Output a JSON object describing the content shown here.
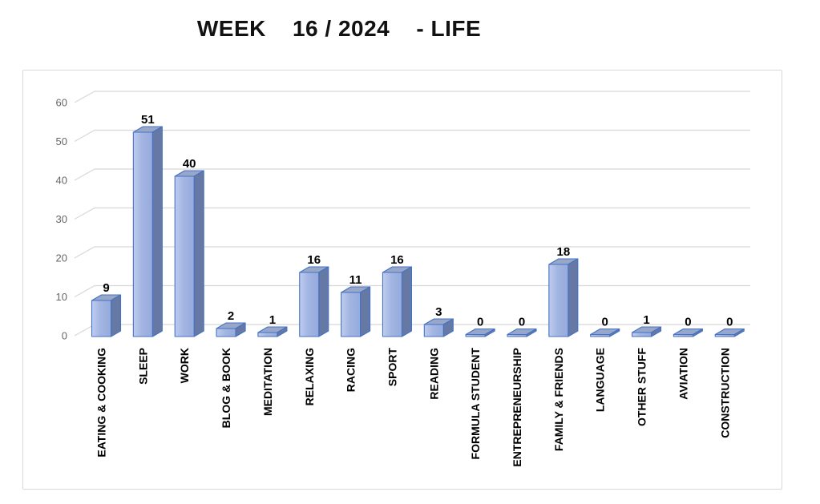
{
  "chart_data": {
    "type": "bar",
    "style": "3d-column",
    "title": "WEEK 16 / 2024 - LIFE",
    "title_display": "WEEK    16 / 2024    - LIFE",
    "categories": [
      "EATING & COOKING",
      "SLEEP",
      "WORK",
      "BLOG & BOOK",
      "MEDITATION",
      "RELAXING",
      "RACING",
      "SPORT",
      "READING",
      "FORMULA STUDENT",
      "ENTREPRENEURSHIP",
      "FAMILY & FRIENDS",
      "LANGUAGE",
      "OTHER STUFF",
      "AVIATION",
      "CONSTRUCTION"
    ],
    "values": [
      9,
      51,
      40,
      2,
      1,
      16,
      11,
      16,
      3,
      0,
      0,
      18,
      0,
      1,
      0,
      0
    ],
    "xlabel": "",
    "ylabel": "",
    "ylim": [
      0,
      60
    ],
    "yticks": [
      0,
      10,
      20,
      30,
      40,
      50,
      60
    ],
    "grid": true,
    "legend": false,
    "data_labels": true,
    "colors": {
      "bar_front_light": "#c0ccee",
      "bar_front": "#a2b5e2",
      "bar_front_dark": "#96aadc",
      "bar_top": "#98a7c8",
      "bar_side": "#6679a4",
      "bar_outline": "#4472c4",
      "gridline": "#d8d8d8",
      "frame_border": "#d9d9d9",
      "axis_text": "#666666",
      "label_text": "#000000",
      "background": "#ffffff"
    }
  }
}
